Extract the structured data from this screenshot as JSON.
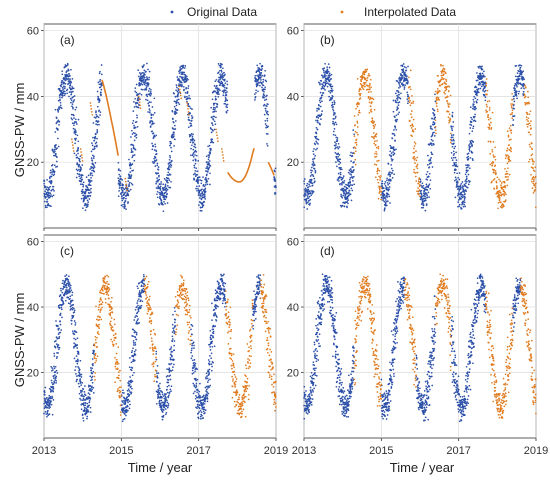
{
  "legend": {
    "original": "Original Data",
    "interpolated": "Interpolated Data",
    "original_color": "#2b4fa8",
    "interpolated_color": "#e07b1f"
  },
  "axes": {
    "ylabel": "GNSS-PW / mm",
    "xlabel": "Time / year",
    "y_ticks": [
      "20",
      "40",
      "60"
    ],
    "x_ticks": [
      "2013",
      "2015",
      "2017",
      "2019"
    ]
  },
  "chart_data": [
    {
      "type": "scatter",
      "panel": "(a)",
      "xlim": [
        2013.0,
        2019.0
      ],
      "ylim": [
        0,
        62
      ],
      "grid": true,
      "series": [
        {
          "name": "Original Data",
          "color": "#2b4fa8",
          "pattern": "seasonal cycle, minima ~8-15 mm in Jan, maxima ~45-48 mm in Jul-Aug"
        },
        {
          "name": "Interpolated Data",
          "color": "#e07b1f",
          "pattern": "smooth interpolated segments: 2014.5-2014.9 (45 to 22), 2017.75-2018.45 (trough ~14), 2018.8-2018.95 (20 to 16)"
        }
      ]
    },
    {
      "type": "scatter",
      "panel": "(b)",
      "xlim": [
        2013.0,
        2019.0
      ],
      "ylim": [
        0,
        62
      ],
      "grid": true,
      "series": [
        {
          "name": "Original Data",
          "color": "#2b4fa8",
          "pattern": "seasonal cycle"
        },
        {
          "name": "Interpolated Data",
          "color": "#e07b1f",
          "pattern": "scattered gap-fill points 2014.3-2015.0, 2015.7-2016.0, 2016.4-2016.8, 2017.7-2018.4, 2018.7-2019.0"
        }
      ]
    },
    {
      "type": "scatter",
      "panel": "(c)",
      "xlim": [
        2013.0,
        2019.0
      ],
      "ylim": [
        0,
        62
      ],
      "grid": true,
      "series": [
        {
          "name": "Original Data",
          "color": "#2b4fa8",
          "pattern": "seasonal cycle"
        },
        {
          "name": "Interpolated Data",
          "color": "#e07b1f",
          "pattern": "dense gap-fill points 2014.3-2015.0, 2015.6-2015.9, 2016.4-2016.8, 2017.7-2018.4, 2018.6-2019.0"
        }
      ]
    },
    {
      "type": "scatter",
      "panel": "(d)",
      "xlim": [
        2013.0,
        2019.0
      ],
      "ylim": [
        0,
        62
      ],
      "grid": true,
      "series": [
        {
          "name": "Original Data",
          "color": "#2b4fa8",
          "pattern": "seasonal cycle"
        },
        {
          "name": "Interpolated Data",
          "color": "#e07b1f",
          "pattern": "dense gap-fill points 2014.3-2015.0, 2015.6-2015.9, 2016.4-2016.8, 2017.7-2018.4, 2018.6-2019.0"
        }
      ]
    }
  ]
}
